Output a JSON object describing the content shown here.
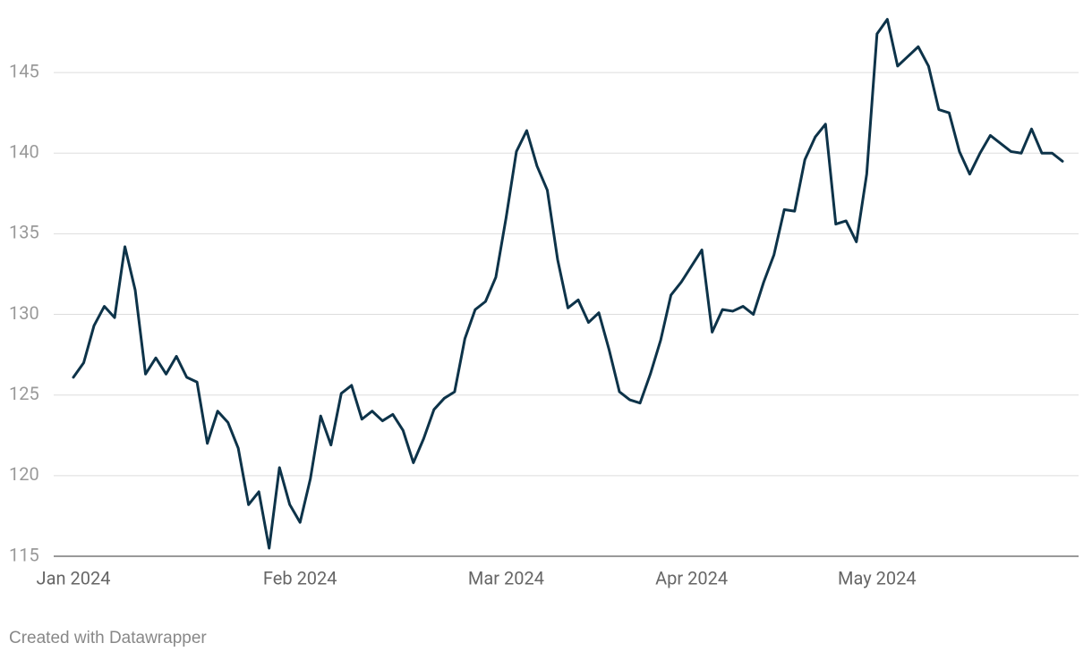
{
  "chart_data": {
    "type": "line",
    "categories": [
      "Jan 2024",
      null,
      null,
      null,
      null,
      null,
      null,
      null,
      null,
      null,
      null,
      null,
      null,
      null,
      null,
      null,
      null,
      null,
      null,
      null,
      null,
      null,
      "Feb 2024",
      null,
      null,
      null,
      null,
      null,
      null,
      null,
      null,
      null,
      null,
      null,
      null,
      null,
      null,
      null,
      null,
      null,
      null,
      null,
      "Mar 2024",
      null,
      null,
      null,
      null,
      null,
      null,
      null,
      null,
      null,
      null,
      null,
      null,
      null,
      null,
      null,
      null,
      null,
      "Apr 2024",
      null,
      null,
      null,
      null,
      null,
      null,
      null,
      null,
      null,
      null,
      null,
      null,
      null,
      null,
      null,
      null,
      null,
      "May 2024",
      null,
      null,
      null,
      null,
      null,
      null,
      null,
      null,
      null,
      null,
      null,
      null,
      null,
      null,
      null,
      null,
      null,
      null
    ],
    "series": [
      {
        "name": null,
        "color": "#0d3349",
        "values": [
          126.1,
          127.0,
          129.3,
          130.5,
          129.8,
          134.2,
          131.5,
          126.3,
          127.3,
          126.3,
          127.4,
          126.1,
          125.8,
          122.0,
          124.0,
          123.3,
          121.7,
          118.2,
          119.0,
          115.5,
          120.5,
          118.2,
          117.1,
          119.8,
          123.7,
          121.9,
          125.1,
          125.6,
          123.5,
          124.0,
          123.4,
          123.8,
          122.8,
          120.8,
          122.3,
          124.1,
          124.8,
          125.2,
          128.5,
          130.3,
          130.8,
          132.3,
          136.0,
          140.1,
          141.4,
          139.2,
          137.7,
          133.4,
          130.4,
          130.9,
          129.5,
          130.1,
          127.8,
          125.2,
          124.7,
          124.5,
          126.3,
          128.4,
          131.2,
          132.0,
          133.0,
          134.0,
          128.9,
          130.3,
          130.2,
          130.5,
          130.0,
          132.0,
          133.7,
          136.5,
          136.4,
          139.6,
          141.0,
          141.8,
          135.6,
          135.8,
          134.5,
          138.7,
          147.4,
          148.3,
          145.4,
          146.0,
          146.6,
          145.4,
          142.7,
          142.5,
          140.1,
          138.7,
          140.0,
          141.1,
          140.6,
          140.1,
          140.0,
          141.5,
          140.0,
          140.0,
          139.5
        ]
      }
    ],
    "ylim": [
      115,
      148.5
    ],
    "yticks": [
      115,
      120,
      125,
      130,
      135,
      140,
      145
    ],
    "grid": true,
    "footer": "Created with Datawrapper"
  }
}
